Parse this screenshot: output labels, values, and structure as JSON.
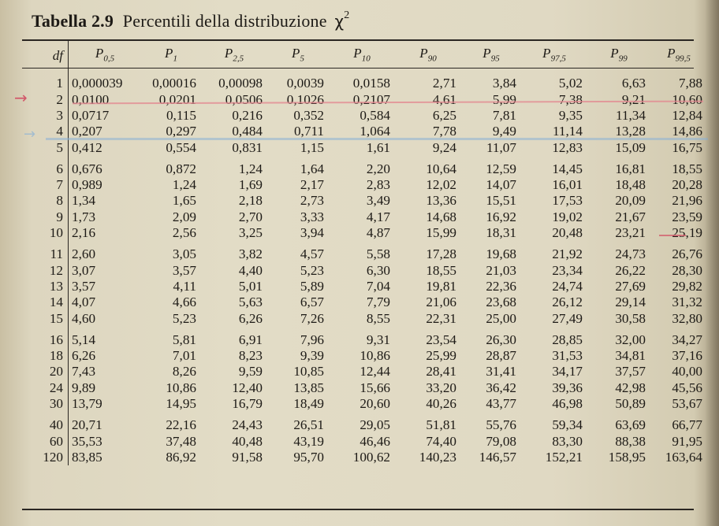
{
  "caption": {
    "number": "Tabella 2.9",
    "text": "Percentili della distribuzione",
    "symbol": "χ",
    "exponent": "2"
  },
  "table": {
    "header_df": "df",
    "columns": [
      {
        "base": "P",
        "sub": "0,5"
      },
      {
        "base": "P",
        "sub": "1"
      },
      {
        "base": "P",
        "sub": "2,5"
      },
      {
        "base": "P",
        "sub": "5"
      },
      {
        "base": "P",
        "sub": "10"
      },
      {
        "base": "P",
        "sub": "90"
      },
      {
        "base": "P",
        "sub": "95"
      },
      {
        "base": "P",
        "sub": "97,5"
      },
      {
        "base": "P",
        "sub": "99"
      },
      {
        "base": "P",
        "sub": "99,5"
      }
    ],
    "rows": [
      {
        "df": "1",
        "v": [
          "0,000039",
          "0,00016",
          "0,00098",
          "0,0039",
          "0,0158",
          "2,71",
          "3,84",
          "5,02",
          "6,63",
          "7,88"
        ]
      },
      {
        "df": "2",
        "v": [
          "0,0100",
          "0,0201",
          "0,0506",
          "0,1026",
          "0,2107",
          "4,61",
          "5,99",
          "7,38",
          "9,21",
          "10,60"
        ]
      },
      {
        "df": "3",
        "v": [
          "0,0717",
          "0,115",
          "0,216",
          "0,352",
          "0,584",
          "6,25",
          "7,81",
          "9,35",
          "11,34",
          "12,84"
        ]
      },
      {
        "df": "4",
        "v": [
          "0,207",
          "0,297",
          "0,484",
          "0,711",
          "1,064",
          "7,78",
          "9,49",
          "11,14",
          "13,28",
          "14,86"
        ]
      },
      {
        "df": "5",
        "v": [
          "0,412",
          "0,554",
          "0,831",
          "1,15",
          "1,61",
          "9,24",
          "11,07",
          "12,83",
          "15,09",
          "16,75"
        ]
      },
      {
        "df": "6",
        "v": [
          "0,676",
          "0,872",
          "1,24",
          "1,64",
          "2,20",
          "10,64",
          "12,59",
          "14,45",
          "16,81",
          "18,55"
        ]
      },
      {
        "df": "7",
        "v": [
          "0,989",
          "1,24",
          "1,69",
          "2,17",
          "2,83",
          "12,02",
          "14,07",
          "16,01",
          "18,48",
          "20,28"
        ]
      },
      {
        "df": "8",
        "v": [
          "1,34",
          "1,65",
          "2,18",
          "2,73",
          "3,49",
          "13,36",
          "15,51",
          "17,53",
          "20,09",
          "21,96"
        ]
      },
      {
        "df": "9",
        "v": [
          "1,73",
          "2,09",
          "2,70",
          "3,33",
          "4,17",
          "14,68",
          "16,92",
          "19,02",
          "21,67",
          "23,59"
        ]
      },
      {
        "df": "10",
        "v": [
          "2,16",
          "2,56",
          "3,25",
          "3,94",
          "4,87",
          "15,99",
          "18,31",
          "20,48",
          "23,21",
          "25,19"
        ]
      },
      {
        "df": "11",
        "v": [
          "2,60",
          "3,05",
          "3,82",
          "4,57",
          "5,58",
          "17,28",
          "19,68",
          "21,92",
          "24,73",
          "26,76"
        ]
      },
      {
        "df": "12",
        "v": [
          "3,07",
          "3,57",
          "4,40",
          "5,23",
          "6,30",
          "18,55",
          "21,03",
          "23,34",
          "26,22",
          "28,30"
        ]
      },
      {
        "df": "13",
        "v": [
          "3,57",
          "4,11",
          "5,01",
          "5,89",
          "7,04",
          "19,81",
          "22,36",
          "24,74",
          "27,69",
          "29,82"
        ]
      },
      {
        "df": "14",
        "v": [
          "4,07",
          "4,66",
          "5,63",
          "6,57",
          "7,79",
          "21,06",
          "23,68",
          "26,12",
          "29,14",
          "31,32"
        ]
      },
      {
        "df": "15",
        "v": [
          "4,60",
          "5,23",
          "6,26",
          "7,26",
          "8,55",
          "22,31",
          "25,00",
          "27,49",
          "30,58",
          "32,80"
        ]
      },
      {
        "df": "16",
        "v": [
          "5,14",
          "5,81",
          "6,91",
          "7,96",
          "9,31",
          "23,54",
          "26,30",
          "28,85",
          "32,00",
          "34,27"
        ]
      },
      {
        "df": "18",
        "v": [
          "6,26",
          "7,01",
          "8,23",
          "9,39",
          "10,86",
          "25,99",
          "28,87",
          "31,53",
          "34,81",
          "37,16"
        ]
      },
      {
        "df": "20",
        "v": [
          "7,43",
          "8,26",
          "9,59",
          "10,85",
          "12,44",
          "28,41",
          "31,41",
          "34,17",
          "37,57",
          "40,00"
        ]
      },
      {
        "df": "24",
        "v": [
          "9,89",
          "10,86",
          "12,40",
          "13,85",
          "15,66",
          "33,20",
          "36,42",
          "39,36",
          "42,98",
          "45,56"
        ]
      },
      {
        "df": "30",
        "v": [
          "13,79",
          "14,95",
          "16,79",
          "18,49",
          "20,60",
          "40,26",
          "43,77",
          "46,98",
          "50,89",
          "53,67"
        ]
      },
      {
        "df": "40",
        "v": [
          "20,71",
          "22,16",
          "24,43",
          "26,51",
          "29,05",
          "51,81",
          "55,76",
          "59,34",
          "63,69",
          "66,77"
        ]
      },
      {
        "df": "60",
        "v": [
          "35,53",
          "37,48",
          "40,48",
          "43,19",
          "46,46",
          "74,40",
          "79,08",
          "83,30",
          "88,38",
          "91,95"
        ]
      },
      {
        "df": "120",
        "v": [
          "83,85",
          "86,92",
          "91,58",
          "95,70",
          "100,62",
          "140,23",
          "146,57",
          "152,21",
          "158,95",
          "163,64"
        ]
      }
    ],
    "group_breaks_after_df": [
      "5",
      "10",
      "15",
      "30"
    ]
  },
  "annotations": {
    "red_arrow": "→",
    "blue_arrow": "→",
    "red_ink": "#d2586a",
    "blue_ink": "#8db3d6"
  }
}
